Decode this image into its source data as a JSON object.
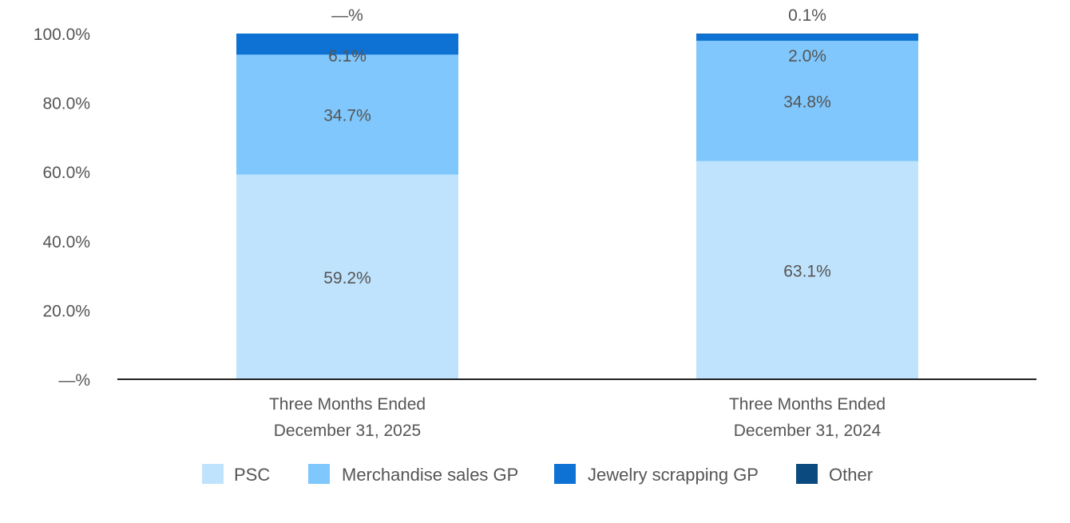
{
  "chart_data": {
    "type": "bar",
    "stacked": true,
    "title": "",
    "xlabel": "",
    "ylabel": "",
    "ylim": [
      0,
      100
    ],
    "yticks": [
      0,
      20,
      40,
      60,
      80,
      100
    ],
    "ytick_labels": [
      "—%",
      "20.0%",
      "40.0%",
      "60.0%",
      "80.0%",
      "100.0%"
    ],
    "categories": [
      [
        "Three Months Ended",
        "December 31, 2025"
      ],
      [
        "Three Months Ended",
        "December 31, 2024"
      ]
    ],
    "series": [
      {
        "name": "PSC",
        "color": "#bfe3fd",
        "values": [
          59.2,
          63.1
        ],
        "labels": [
          "59.2%",
          "63.1%"
        ]
      },
      {
        "name": "Merchandise sales GP",
        "color": "#7fc7fc",
        "values": [
          34.7,
          34.8
        ],
        "labels": [
          "34.7%",
          "34.8%"
        ]
      },
      {
        "name": "Jewelry scrapping GP",
        "color": "#0d72d4",
        "values": [
          6.1,
          2.0
        ],
        "labels": [
          "6.1%",
          "2.0%"
        ]
      },
      {
        "name": "Other",
        "color": "#0b4a7e",
        "values": [
          0.0,
          0.1
        ],
        "labels": [
          "—%",
          "0.1%"
        ]
      }
    ],
    "legend": "bottom-center",
    "grid": false
  }
}
